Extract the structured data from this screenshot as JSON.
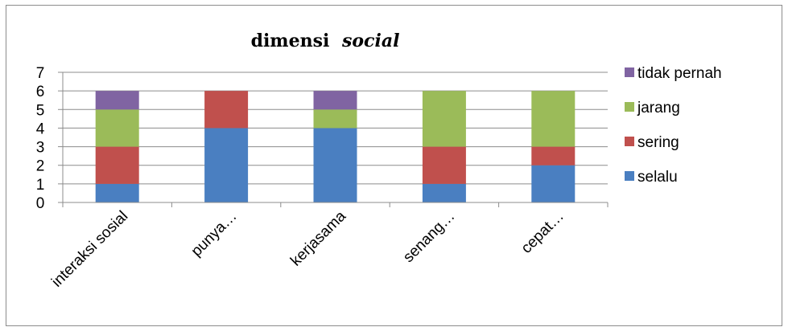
{
  "chart_data": {
    "type": "bar",
    "stacked": true,
    "title": "dimensi",
    "title_italic": "social",
    "categories": [
      "interaksi sosial",
      "punya…",
      "kerjasama",
      "senang…",
      "cepat…"
    ],
    "series": [
      {
        "name": "selalu",
        "color": "#4a7fc1",
        "values": [
          1,
          4,
          4,
          1,
          2
        ]
      },
      {
        "name": "sering",
        "color": "#c0504d",
        "values": [
          2,
          2,
          0,
          2,
          1
        ]
      },
      {
        "name": "jarang",
        "color": "#9bbb59",
        "values": [
          2,
          0,
          1,
          3,
          3
        ]
      },
      {
        "name": "tidak pernah",
        "color": "#8064a2",
        "values": [
          1,
          0,
          1,
          0,
          0
        ]
      }
    ],
    "ylim": [
      0,
      7
    ],
    "yticks": [
      "0",
      "1",
      "2",
      "3",
      "4",
      "5",
      "6",
      "7"
    ],
    "grid": true,
    "legend": "right"
  }
}
